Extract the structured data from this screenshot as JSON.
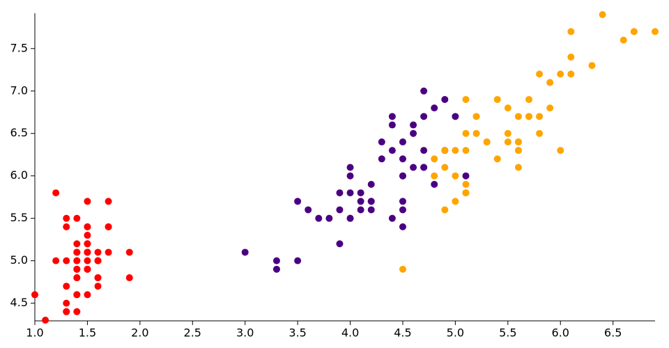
{
  "chart_data": {
    "type": "scatter",
    "xlim": [
      1.0,
      6.9
    ],
    "ylim": [
      4.3,
      7.9
    ],
    "xticks": [
      {
        "value": 1.0,
        "label": "1.0"
      },
      1.5,
      {
        "value": 2.0,
        "label": "2.0"
      },
      2.5,
      {
        "value": 3.0,
        "label": "3.0"
      },
      3.5,
      {
        "value": 4.0,
        "label": "4.0"
      },
      4.5,
      {
        "value": 5.0,
        "label": "5.0"
      },
      5.5,
      {
        "value": 6.0,
        "label": "6.0"
      },
      6.5
    ],
    "yticks": [
      4.5,
      {
        "value": 5.0,
        "label": "5.0"
      },
      5.5,
      {
        "value": 6.0,
        "label": "6.0"
      },
      6.5,
      {
        "value": 7.0,
        "label": "7.0"
      },
      7.5
    ],
    "series": [
      {
        "color": "#ff0000",
        "x": [
          1.4,
          1.4,
          1.3,
          1.5,
          1.4,
          1.7,
          1.4,
          1.5,
          1.4,
          1.5,
          1.5,
          1.6,
          1.4,
          1.1,
          1.2,
          1.5,
          1.3,
          1.4,
          1.7,
          1.5,
          1.7,
          1.5,
          1.0,
          1.7,
          1.9,
          1.6,
          1.6,
          1.5,
          1.4,
          1.6,
          1.6,
          1.5,
          1.5,
          1.4,
          1.5,
          1.2,
          1.3,
          1.4,
          1.3,
          1.5,
          1.3,
          1.3,
          1.3,
          1.6,
          1.9,
          1.4,
          1.6,
          1.4,
          1.5,
          1.4
        ],
        "values": [
          5.1,
          4.9,
          4.7,
          4.6,
          5.0,
          5.4,
          4.6,
          5.0,
          4.4,
          4.9,
          5.4,
          4.8,
          4.8,
          4.3,
          5.8,
          5.7,
          5.4,
          5.1,
          5.7,
          5.1,
          5.4,
          5.1,
          4.6,
          5.1,
          4.8,
          5.0,
          5.0,
          5.2,
          5.2,
          4.7,
          4.8,
          5.4,
          5.2,
          5.5,
          4.9,
          5.0,
          5.5,
          4.9,
          4.4,
          5.1,
          5.0,
          4.5,
          4.4,
          5.0,
          5.1,
          4.8,
          5.1,
          4.6,
          5.3,
          5.0
        ]
      },
      {
        "color": "#4b0082",
        "x": [
          4.7,
          4.5,
          4.9,
          4.0,
          4.6,
          4.5,
          4.7,
          3.3,
          4.6,
          3.9,
          3.5,
          4.2,
          4.0,
          4.7,
          3.6,
          4.4,
          4.5,
          4.1,
          4.5,
          3.9,
          4.8,
          4.0,
          4.9,
          4.7,
          4.3,
          4.4,
          4.8,
          5.0,
          4.5,
          3.5,
          3.8,
          3.7,
          3.9,
          5.1,
          4.5,
          4.5,
          4.7,
          4.4,
          4.1,
          4.0,
          4.4,
          4.6,
          4.0,
          3.3,
          4.2,
          4.2,
          4.2,
          4.3,
          3.0,
          4.1
        ],
        "values": [
          7.0,
          6.4,
          6.9,
          5.5,
          6.5,
          5.7,
          6.3,
          4.9,
          6.6,
          5.2,
          5.0,
          5.9,
          6.0,
          6.1,
          5.6,
          6.7,
          5.6,
          5.8,
          6.2,
          5.6,
          5.9,
          6.1,
          6.3,
          6.1,
          6.4,
          6.6,
          6.8,
          6.7,
          6.0,
          5.7,
          5.5,
          5.5,
          5.8,
          6.0,
          5.4,
          6.0,
          6.7,
          6.3,
          5.6,
          5.5,
          5.5,
          6.1,
          5.8,
          5.0,
          5.6,
          5.7,
          5.7,
          6.2,
          5.1,
          5.7
        ]
      },
      {
        "color": "#ffa500",
        "x": [
          6.0,
          5.1,
          5.9,
          5.6,
          5.8,
          6.6,
          4.5,
          6.3,
          5.8,
          6.1,
          5.1,
          5.3,
          5.5,
          5.0,
          5.1,
          5.3,
          5.5,
          6.7,
          6.9,
          5.0,
          5.7,
          4.9,
          6.7,
          4.9,
          5.7,
          6.0,
          4.8,
          4.9,
          5.6,
          5.8,
          6.1,
          6.4,
          5.6,
          5.1,
          5.6,
          6.1,
          5.6,
          5.5,
          4.8,
          5.4,
          5.6,
          5.1,
          5.1,
          5.9,
          5.7,
          5.2,
          5.0,
          5.2,
          5.4,
          5.1
        ],
        "values": [
          6.3,
          5.8,
          7.1,
          6.3,
          6.5,
          7.6,
          4.9,
          7.3,
          6.7,
          7.2,
          6.5,
          6.4,
          6.8,
          5.7,
          5.8,
          6.4,
          6.5,
          7.7,
          7.7,
          6.0,
          6.9,
          5.6,
          7.7,
          6.3,
          6.7,
          7.2,
          6.2,
          6.1,
          6.4,
          7.2,
          7.4,
          7.9,
          6.4,
          6.3,
          6.1,
          7.7,
          6.3,
          6.4,
          6.0,
          6.9,
          6.7,
          6.9,
          5.8,
          6.8,
          6.7,
          6.7,
          6.3,
          6.5,
          6.2,
          5.9
        ]
      }
    ]
  }
}
